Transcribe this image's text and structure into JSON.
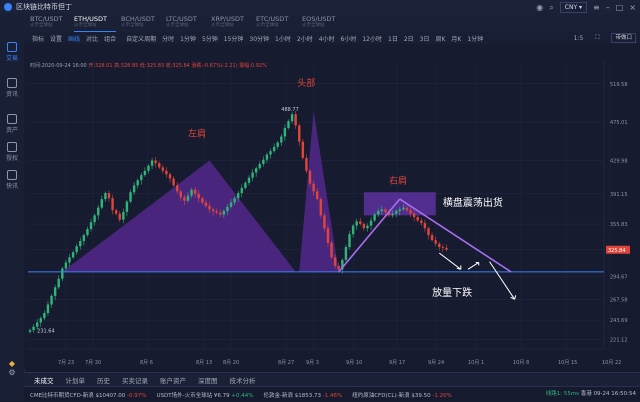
{
  "app": {
    "title": "区块链比特币但丁",
    "currency": "CNY"
  },
  "sidebar": {
    "items": [
      {
        "label": "交易",
        "icon": "exchange-icon"
      },
      {
        "label": "资讯",
        "icon": "news-icon"
      },
      {
        "label": "资产",
        "icon": "assets-icon"
      },
      {
        "label": "授权",
        "icon": "auth-icon"
      },
      {
        "label": "快讯",
        "icon": "flash-news-icon"
      }
    ]
  },
  "tabs": [
    {
      "symbol": "BTC/USDT",
      "sub": "火币全球站"
    },
    {
      "symbol": "ETH/USDT",
      "sub": "火币全球站"
    },
    {
      "symbol": "BCH/USDT",
      "sub": "火币全球站"
    },
    {
      "symbol": "LTC/USDT",
      "sub": "火币全球站"
    },
    {
      "symbol": "XRP/USDT",
      "sub": "火币全球站"
    },
    {
      "symbol": "ETC/USDT",
      "sub": "火币全球站"
    },
    {
      "symbol": "EOS/USDT",
      "sub": "火币全球站"
    }
  ],
  "toolbar": {
    "indicator": "指标",
    "settings": "设置",
    "draw": "画线",
    "compare": "对比",
    "combo": "组合",
    "custom_period": "自定义周期",
    "periods": [
      "分时",
      "1分钟",
      "5分钟",
      "15分钟",
      "30分钟",
      "1小时",
      "2小时",
      "4小时",
      "6小时",
      "12小时",
      "1日",
      "2日",
      "3日",
      "周K",
      "月K",
      "1分钟"
    ],
    "scale": "1:5",
    "pro_button": "带做口"
  },
  "ohlc": {
    "time": "时间:2020-09-24 16:00",
    "open": "开:328.01",
    "high": "高:328.85",
    "low": "低:325.83",
    "close": "收:325.84",
    "change": "涨跌:-0.67%(-2.21)",
    "amplitude": "振幅:0.92%"
  },
  "annotations": {
    "left_shoulder": "左肩",
    "head": "头部",
    "right_shoulder": "右肩",
    "consolidation": "横盘震荡出货",
    "volume_drop": "放量下跌",
    "high_value": "488.77",
    "low_value": "231.64"
  },
  "chart_data": {
    "type": "candlestick",
    "pair": "ETH/USDT",
    "x_ticks": [
      "7月 23",
      "7月 30",
      "8月 6",
      "8月 13",
      "8月 20",
      "8月 27",
      "9月 3",
      "9月 10",
      "9月 17",
      "9月 24",
      "10月 1",
      "10月 8",
      "10月 15",
      "10月 22"
    ],
    "y_ticks": [
      519.58,
      475.01,
      429.98,
      391.15,
      355.83,
      325.84,
      294.67,
      267.58,
      243.69,
      221.12
    ],
    "last_price": "325.84",
    "neckline": 300,
    "y_range": [
      210,
      545
    ],
    "max_label": 488.77,
    "min_label": 231.64,
    "closes": [
      232,
      236,
      241,
      246,
      252,
      262,
      272,
      282,
      292,
      304,
      311,
      317,
      323,
      330,
      336,
      343,
      350,
      358,
      366,
      375,
      385,
      392,
      386,
      372,
      368,
      361,
      370,
      382,
      393,
      401,
      407,
      413,
      418,
      424,
      430,
      427,
      422,
      418,
      414,
      409,
      401,
      394,
      387,
      383,
      389,
      396,
      391,
      386,
      381,
      377,
      373,
      371,
      369,
      367,
      371,
      376,
      381,
      386,
      392,
      398,
      404,
      410,
      416,
      421,
      426,
      431,
      437,
      441,
      446,
      451,
      458,
      468,
      476,
      484,
      471,
      452,
      433,
      418,
      403,
      394,
      385,
      366,
      351,
      334,
      317,
      307,
      303,
      314,
      329,
      344,
      354,
      359,
      356,
      351,
      354,
      360,
      367,
      371,
      373,
      370,
      366,
      368,
      371,
      373,
      375,
      372,
      368,
      364,
      360,
      357,
      351,
      343,
      337,
      333,
      329,
      328,
      326
    ]
  },
  "bottom_tabs": [
    "未成交",
    "计划单",
    "历史",
    "买卖记录",
    "账户资产",
    "深度图",
    "技术分析"
  ],
  "tickers": [
    {
      "name": "CME比特币期货CFD-新浪",
      "price": "$10407.00",
      "change": "-0.97%"
    },
    {
      "name": "USDT场外-火币全球站",
      "price": "¥6.79",
      "change": "+0.44%"
    },
    {
      "name": "伦敦金-新浪",
      "price": "$1853.73",
      "change": "-1.46%"
    },
    {
      "name": "纽约原油CFD(CL)-新浪",
      "price": "$39.50",
      "change": "-1.20%"
    }
  ],
  "status": {
    "network": "线路1: 55ms",
    "site": "香港",
    "datetime": "09-24 16:50:54"
  },
  "colors": {
    "up": "#2fb57a",
    "down": "#e0453b",
    "pattern": "#5b2a98",
    "accent": "#3b82f6"
  }
}
